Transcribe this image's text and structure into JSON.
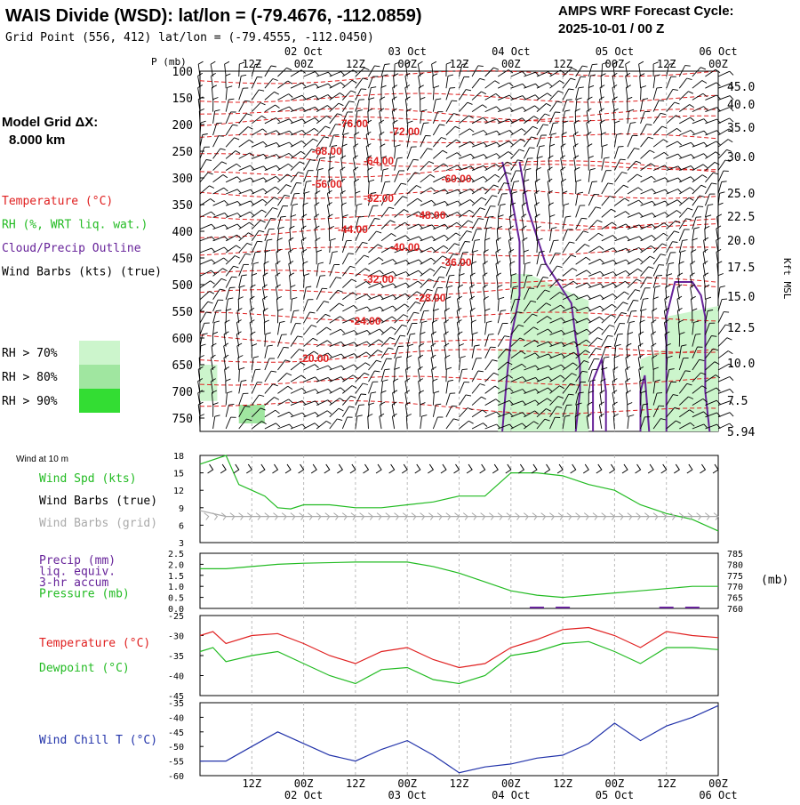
{
  "header": {
    "title": "WAIS Divide (WSD):  lat/lon = (-79.4676, -112.0859)",
    "grid_point": "Grid Point (556, 412) lat/lon = (-79.4555, -112.0450)",
    "forecast_label": "AMPS WRF Forecast Cycle:",
    "forecast_cycle": "2025-10-01 / 00  Z"
  },
  "left_panel": {
    "grid_label": "Model Grid ΔX:",
    "grid_value": "8.000 km",
    "legend": [
      {
        "text": "Temperature (°C)",
        "color": "#e02020"
      },
      {
        "text": "RH (%, WRT liq. wat.)",
        "color": "#22bb22"
      },
      {
        "text": "Cloud/Precip Outline",
        "color": "#662299"
      },
      {
        "text": "Wind Barbs (kts) (true)",
        "color": "#000000"
      }
    ],
    "rh_thresholds": [
      {
        "text": "RH > 70%",
        "color": "#ccf5cc"
      },
      {
        "text": "RH > 80%",
        "color": "#a0e6a0"
      },
      {
        "text": "RH > 90%",
        "color": "#33dd33"
      }
    ]
  },
  "time_axis": {
    "labels": [
      "12Z",
      "00Z",
      "12Z",
      "00Z",
      "12Z",
      "00Z",
      "12Z",
      "00Z",
      "12Z",
      "00Z"
    ],
    "dates": [
      "02 Oct",
      "03 Oct",
      "04 Oct",
      "05 Oct",
      "06 Oct"
    ]
  },
  "profile": {
    "p_label": "P (mb)",
    "pressure_ticks": [
      "100",
      "150",
      "200",
      "250",
      "300",
      "350",
      "400",
      "450",
      "500",
      "550",
      "600",
      "650",
      "700",
      "750"
    ],
    "kft_ticks": [
      "45.0",
      "40.0",
      "35.0",
      "30.0",
      "25.0",
      "22.5",
      "20.0",
      "17.5",
      "15.0",
      "12.5",
      "10.0",
      "7.5",
      "5.94"
    ],
    "kft_label": "Kft MSL",
    "temp_labels": [
      "-76.00",
      "-72.00",
      "-68.00",
      "-64.00",
      "-60.00",
      "-56.00",
      "-52.00",
      "-48.00",
      "-44.00",
      "-40.00",
      "-36.00",
      "-32.00",
      "-28.00",
      "-24.00",
      "-20.00"
    ]
  },
  "wind_panel": {
    "title": "Wind at 10 m",
    "labels": [
      "Wind Spd (kts)",
      "Wind Barbs (true)",
      "Wind Barbs (grid)"
    ],
    "yticks": [
      "18",
      "15",
      "12",
      "9",
      "6",
      "3"
    ]
  },
  "precip_panel": {
    "labels": [
      "Precip (mm)",
      "liq. equiv.",
      "3-hr accum",
      "Pressure (mb)"
    ],
    "yticks_left": [
      "2.5",
      "2.0",
      "1.5",
      "1.0",
      "0.5",
      "0.0"
    ],
    "yticks_right": [
      "785",
      "780",
      "775",
      "770",
      "765",
      "760"
    ],
    "unit_right": "(mb)"
  },
  "temp_panel": {
    "labels": [
      "Temperature (°C)",
      "Dewpoint (°C)"
    ],
    "yticks": [
      "-25",
      "-30",
      "-35",
      "-40",
      "-45"
    ]
  },
  "windchill_panel": {
    "label": "Wind Chill T (°C)",
    "yticks": [
      "-35",
      "-40",
      "-45",
      "-50",
      "-55",
      "-60"
    ]
  },
  "chart_data": [
    {
      "type": "line",
      "panel": "wind",
      "x_hours": [
        0,
        6,
        9,
        12,
        15,
        18,
        21,
        24,
        30,
        36,
        42,
        48,
        54,
        60,
        66,
        72,
        78,
        84,
        90,
        96,
        102,
        108,
        114,
        120
      ],
      "series": [
        {
          "name": "Wind Spd (kts)",
          "color": "#22bb22",
          "values": [
            16.5,
            18,
            13,
            12,
            11,
            9,
            8.8,
            9.5,
            9.5,
            9,
            9,
            9.5,
            10,
            11,
            11,
            15,
            15,
            14.5,
            13,
            12,
            9.5,
            8,
            7,
            5
          ]
        },
        {
          "name": "Wind Barbs (grid)",
          "color": "#aaaaaa",
          "values": [
            8.5,
            7.5,
            7.5,
            7.5,
            7.5,
            7.5,
            7.5,
            7.5,
            7.5,
            7.5,
            7.5,
            7.5,
            7.5,
            7.5,
            7.5,
            7.5,
            7.5,
            7.5,
            7.5,
            7.5,
            7.5,
            7.5,
            7.5,
            7.5
          ]
        }
      ],
      "ylim": [
        3,
        18
      ]
    },
    {
      "type": "line",
      "panel": "precip",
      "x_hours": [
        0,
        6,
        12,
        18,
        24,
        36,
        48,
        54,
        60,
        66,
        72,
        78,
        84,
        90,
        96,
        102,
        108,
        114,
        120
      ],
      "series": [
        {
          "name": "Pressure (mb)",
          "color": "#22bb22",
          "values": [
            778,
            778,
            779,
            780,
            780.5,
            781,
            781,
            779,
            776,
            772,
            768,
            766,
            765,
            766,
            767,
            768,
            769,
            770,
            770
          ]
        },
        {
          "name": "Precip (mm)",
          "color": "#662299",
          "values": [
            0,
            0,
            0,
            0,
            0,
            0,
            0,
            0,
            0,
            0,
            0,
            0.1,
            0.1,
            0,
            0,
            0,
            0.1,
            0.1,
            0
          ]
        }
      ],
      "ylim_left": [
        0,
        2.5
      ],
      "ylim_right": [
        760,
        785
      ]
    },
    {
      "type": "line",
      "panel": "temperature",
      "x_hours": [
        0,
        3,
        6,
        12,
        18,
        24,
        30,
        36,
        42,
        48,
        54,
        60,
        66,
        72,
        78,
        84,
        90,
        96,
        102,
        108,
        114,
        120
      ],
      "series": [
        {
          "name": "Temperature (°C)",
          "color": "#e02020",
          "values": [
            -30,
            -29,
            -32,
            -30,
            -29.5,
            -32,
            -35,
            -37,
            -34,
            -33,
            -36,
            -38,
            -37,
            -33,
            -31,
            -28.5,
            -28,
            -30,
            -33,
            -29,
            -30,
            -30.5
          ]
        },
        {
          "name": "Dewpoint (°C)",
          "color": "#22bb22",
          "values": [
            -34,
            -33,
            -36.5,
            -35,
            -34,
            -37,
            -40,
            -42,
            -38.5,
            -38,
            -41,
            -42,
            -40,
            -35,
            -34,
            -32,
            -31.5,
            -34,
            -37,
            -33,
            -33,
            -33.5
          ]
        }
      ],
      "ylim": [
        -45,
        -25
      ]
    },
    {
      "type": "line",
      "panel": "windchill",
      "x_hours": [
        0,
        6,
        12,
        18,
        24,
        30,
        36,
        42,
        48,
        54,
        60,
        66,
        72,
        78,
        84,
        90,
        96,
        102,
        108,
        114,
        120
      ],
      "series": [
        {
          "name": "Wind Chill T (°C)",
          "color": "#2233aa",
          "values": [
            -55,
            -55,
            -50,
            -45,
            -49,
            -53,
            -55,
            -51,
            -48,
            -53,
            -59,
            -57,
            -56,
            -54,
            -53,
            -49,
            -42,
            -48,
            -43,
            -40,
            -36
          ]
        }
      ],
      "ylim": [
        -60,
        -35
      ]
    }
  ]
}
